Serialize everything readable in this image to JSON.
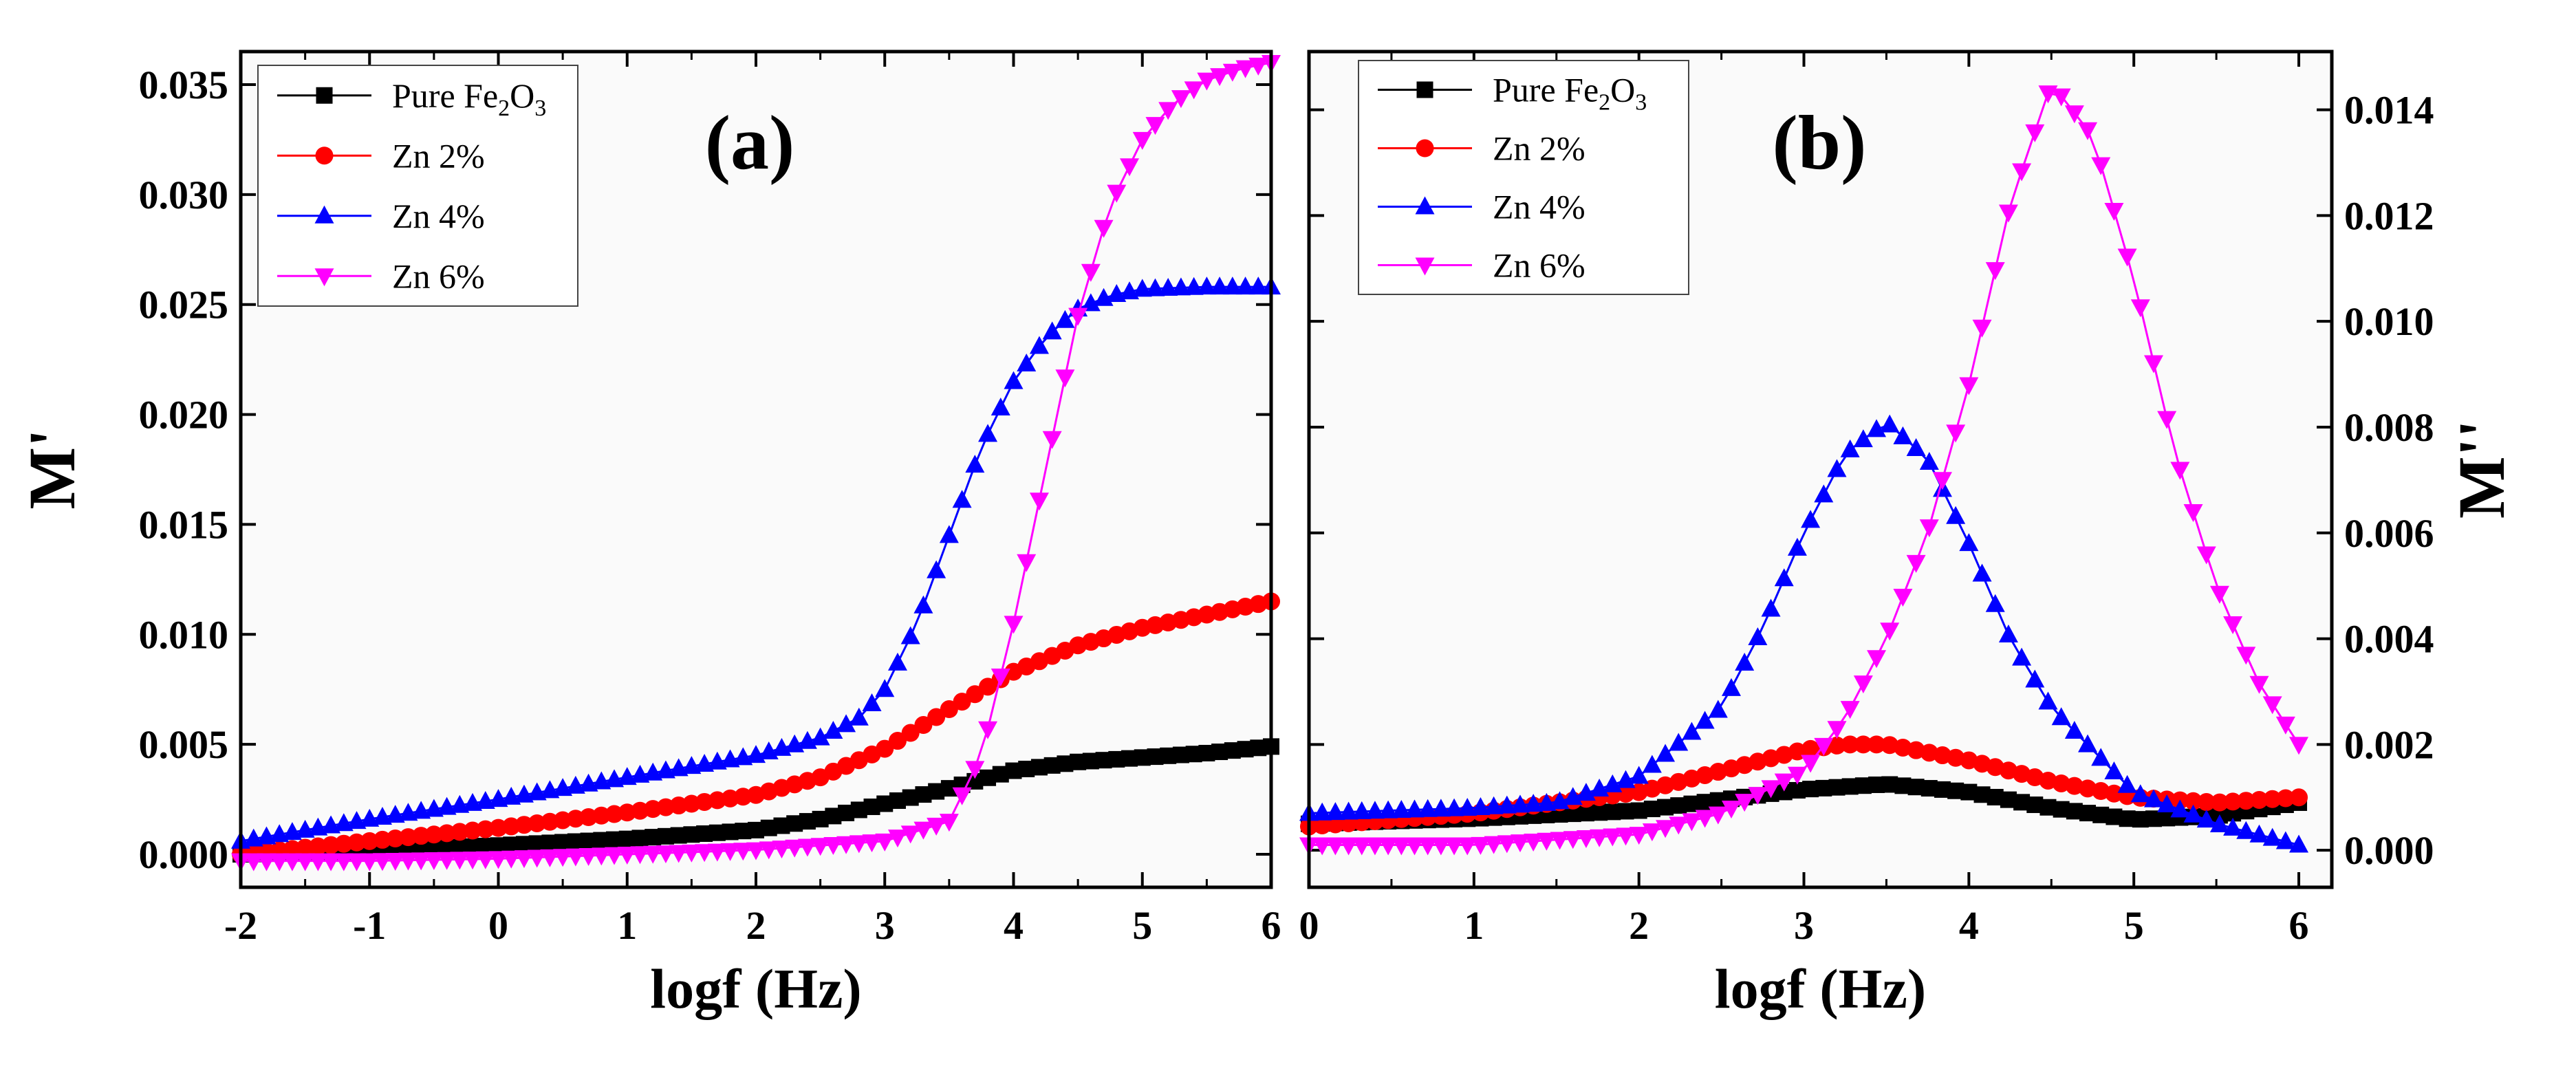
{
  "chart_data": [
    {
      "type": "line",
      "panel_label": "(a)",
      "xlabel": "logf (Hz)",
      "ylabel": "M'",
      "xlim": [
        -2,
        6
      ],
      "ylim": [
        -0.0015,
        0.0365
      ],
      "xticks": [
        "-2",
        "-1",
        "0",
        "1",
        "2",
        "3",
        "4",
        "5",
        "6"
      ],
      "yticks": [
        "0.000",
        "0.005",
        "0.010",
        "0.015",
        "0.020",
        "0.025",
        "0.030",
        "0.035"
      ],
      "y_axis_side": "left",
      "legend_position": "top-left",
      "series": [
        {
          "name": "Pure Fe2O3",
          "label_main": "Pure Fe",
          "sub1": "2",
          "mid": "O",
          "sub2": "3",
          "color": "#000000",
          "marker": "square",
          "x": [
            -2,
            -1,
            0,
            1,
            2,
            2.5,
            3,
            3.5,
            4,
            4.5,
            5,
            5.5,
            6
          ],
          "y": [
            0.0,
            0.00015,
            0.0004,
            0.0007,
            0.0011,
            0.0016,
            0.0023,
            0.003,
            0.0038,
            0.0042,
            0.0044,
            0.0046,
            0.0049
          ]
        },
        {
          "name": "Zn 2%",
          "color": "#ff0000",
          "marker": "circle",
          "x": [
            -2,
            -1,
            0,
            1,
            2,
            2.5,
            3,
            3.5,
            4,
            4.5,
            5,
            5.5,
            6
          ],
          "y": [
            0.0,
            0.0006,
            0.0012,
            0.0019,
            0.0027,
            0.0035,
            0.0048,
            0.0066,
            0.0083,
            0.0095,
            0.0103,
            0.0109,
            0.0115
          ]
        },
        {
          "name": "Zn 4%",
          "color": "#0000ff",
          "marker": "triangle-up",
          "x": [
            -2,
            -1,
            0,
            1,
            2,
            2.5,
            2.8,
            3,
            3.25,
            3.5,
            3.75,
            4,
            4.25,
            4.5,
            4.75,
            5,
            5.5,
            6
          ],
          "y": [
            0.0006,
            0.0016,
            0.0025,
            0.0035,
            0.0045,
            0.0053,
            0.0062,
            0.0075,
            0.0105,
            0.0145,
            0.0185,
            0.0215,
            0.0235,
            0.0248,
            0.0254,
            0.0257,
            0.0258,
            0.0258
          ]
        },
        {
          "name": "Zn 6%",
          "color": "#ff00ff",
          "marker": "triangle-down",
          "x": [
            -2,
            -1,
            0,
            1,
            2,
            3,
            3.5,
            3.75,
            4,
            4.25,
            4.5,
            4.75,
            5,
            5.25,
            5.5,
            5.75,
            6
          ],
          "y": [
            -0.0003,
            -0.0003,
            -0.0002,
            0.0,
            0.0002,
            0.0006,
            0.0015,
            0.0045,
            0.0105,
            0.0175,
            0.0245,
            0.0295,
            0.0325,
            0.0342,
            0.0352,
            0.0357,
            0.036
          ]
        }
      ]
    },
    {
      "type": "line",
      "panel_label": "(b)",
      "xlabel": "logf (Hz)",
      "ylabel": "M''",
      "xlim": [
        0,
        6.2
      ],
      "ylim": [
        -0.0007,
        0.0151
      ],
      "xticks": [
        "0",
        "1",
        "2",
        "3",
        "4",
        "5",
        "6"
      ],
      "yticks": [
        "0.000",
        "0.002",
        "0.004",
        "0.006",
        "0.008",
        "0.010",
        "0.012",
        "0.014"
      ],
      "y_axis_side": "right",
      "legend_position": "top-left",
      "series": [
        {
          "name": "Pure Fe2O3",
          "label_main": "Pure Fe",
          "sub1": "2",
          "mid": "O",
          "sub2": "3",
          "color": "#000000",
          "marker": "square",
          "x": [
            0,
            1,
            2,
            2.5,
            3,
            3.5,
            4,
            4.5,
            5,
            5.5,
            6
          ],
          "y": [
            0.0005,
            0.0006,
            0.00075,
            0.00095,
            0.00115,
            0.00125,
            0.0011,
            0.0008,
            0.00058,
            0.00065,
            0.0009
          ]
        },
        {
          "name": "Zn 2%",
          "color": "#ff0000",
          "marker": "circle",
          "x": [
            0,
            1,
            2,
            2.5,
            3,
            3.25,
            3.5,
            4,
            4.5,
            5,
            5.5,
            6
          ],
          "y": [
            0.00045,
            0.0007,
            0.0011,
            0.0015,
            0.0019,
            0.002,
            0.002,
            0.0017,
            0.0013,
            0.001,
            0.0009,
            0.001
          ]
        },
        {
          "name": "Zn 4%",
          "color": "#0000ff",
          "marker": "triangle-up",
          "x": [
            0,
            1,
            1.5,
            2,
            2.5,
            2.75,
            3,
            3.25,
            3.5,
            3.75,
            4,
            4.25,
            4.5,
            5,
            5.5,
            6
          ],
          "y": [
            0.0007,
            0.0008,
            0.0009,
            0.0014,
            0.0027,
            0.0042,
            0.006,
            0.0075,
            0.0081,
            0.0074,
            0.0058,
            0.004,
            0.0027,
            0.0011,
            0.0005,
            0.0001
          ]
        },
        {
          "name": "Zn 6%",
          "color": "#ff00ff",
          "marker": "triangle-down",
          "x": [
            0,
            1,
            2,
            2.5,
            3,
            3.25,
            3.5,
            3.75,
            4,
            4.25,
            4.5,
            4.75,
            5,
            5.25,
            5.5,
            5.75,
            6
          ],
          "y": [
            0.0001,
            0.0001,
            0.0003,
            0.0007,
            0.0015,
            0.0025,
            0.004,
            0.006,
            0.0088,
            0.0122,
            0.0145,
            0.0135,
            0.0108,
            0.0075,
            0.005,
            0.0032,
            0.002
          ]
        }
      ]
    }
  ]
}
